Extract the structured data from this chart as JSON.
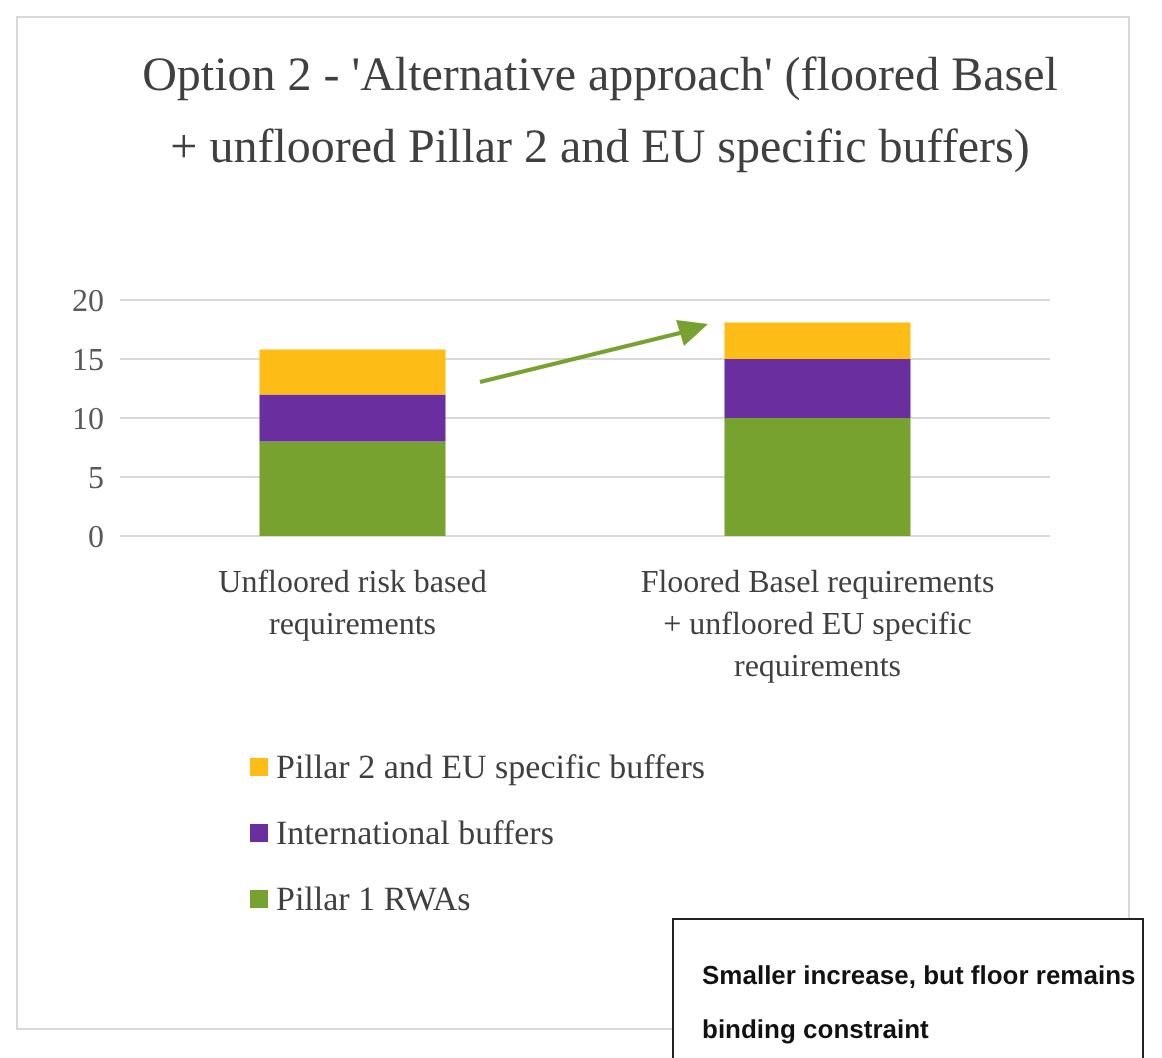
{
  "chart_data": {
    "type": "bar",
    "title": "Option 2 - 'Alternative approach' (floored Basel +  unfloored Pillar 2 and EU specific buffers)",
    "categories": [
      "Unfloored risk based requirements",
      "Floored Basel requirements + unfloored EU specific requirements"
    ],
    "series": [
      {
        "name": "Pillar 1 RWAs",
        "color": "#77a22f",
        "values": [
          8,
          10
        ]
      },
      {
        "name": "International buffers",
        "color": "#6a2e9e",
        "values": [
          4,
          5
        ]
      },
      {
        "name": "Pillar 2 and EU specific buffers",
        "color": "#fdbd16",
        "values": [
          3.8,
          3.1
        ]
      }
    ],
    "stacked": true,
    "ylim": [
      0,
      20
    ],
    "yticks": [
      0,
      5,
      10,
      15,
      20
    ],
    "grid": "y",
    "legend": "bottom",
    "annotations": [
      "Smaller increase, but floor remains binding constraint"
    ]
  }
}
